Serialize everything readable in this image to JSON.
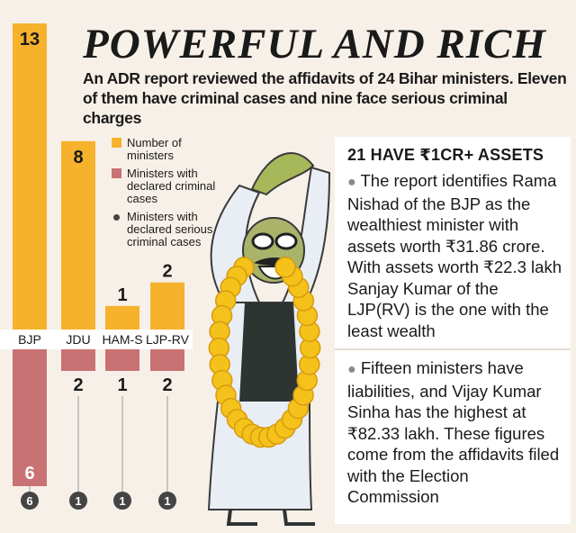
{
  "title": "POWERFUL AND RICH",
  "subtitle": "An ADR report reviewed the affidavits of 24 Bihar ministers. Eleven of them have criminal cases and nine face serious criminal charges",
  "chart_data": {
    "type": "bar",
    "categories": [
      "BJP",
      "JDU",
      "HAM-S",
      "LJP-RV"
    ],
    "series": [
      {
        "name": "Number of ministers",
        "values": [
          13,
          8,
          1,
          2
        ],
        "color": "#f6b22c"
      },
      {
        "name": "Ministers with declared criminal cases",
        "values": [
          6,
          2,
          1,
          2
        ],
        "color": "#c97273"
      },
      {
        "name": "Ministers with declared serious criminal cases",
        "values": [
          6,
          1,
          1,
          1
        ],
        "color": "#444444"
      }
    ],
    "value_labels_up": [
      "13",
      "8",
      "1",
      "2"
    ],
    "value_labels_down": [
      "6",
      "2",
      "1",
      "2"
    ],
    "dot_labels": [
      "6",
      "1",
      "1",
      "1"
    ],
    "ylim_up": [
      0,
      13
    ],
    "ylim_down": [
      0,
      6
    ]
  },
  "legend": [
    {
      "label": "Number of ministers",
      "marker": "square",
      "color": "#f6b22c"
    },
    {
      "label": "Ministers with declared criminal cases",
      "marker": "square",
      "color": "#c97273"
    },
    {
      "label": "Ministers with declared serious criminal cases",
      "marker": "dot",
      "color": "#444444"
    }
  ],
  "panel": {
    "title": "21 HAVE ₹1CR+ ASSETS",
    "paragraph1": "The report identifies Rama Nishad of the BJP as the wealthiest minister with assets worth ₹31.86 crore. With assets worth ₹22.3 lakh Sanjay Kumar of the LJP(RV) is the one with the least wealth",
    "paragraph2": "Fifteen ministers have liabilities, and Vijay Kumar Sinha has the highest at ₹82.33 lakh. These figures come from the affidavits filed with the Election Commission"
  },
  "colors": {
    "ministers": "#f6b22c",
    "criminal": "#c97273",
    "serious": "#444444",
    "garland": "#f4c21a"
  },
  "illustration": "cartoon-politician-with-garland"
}
